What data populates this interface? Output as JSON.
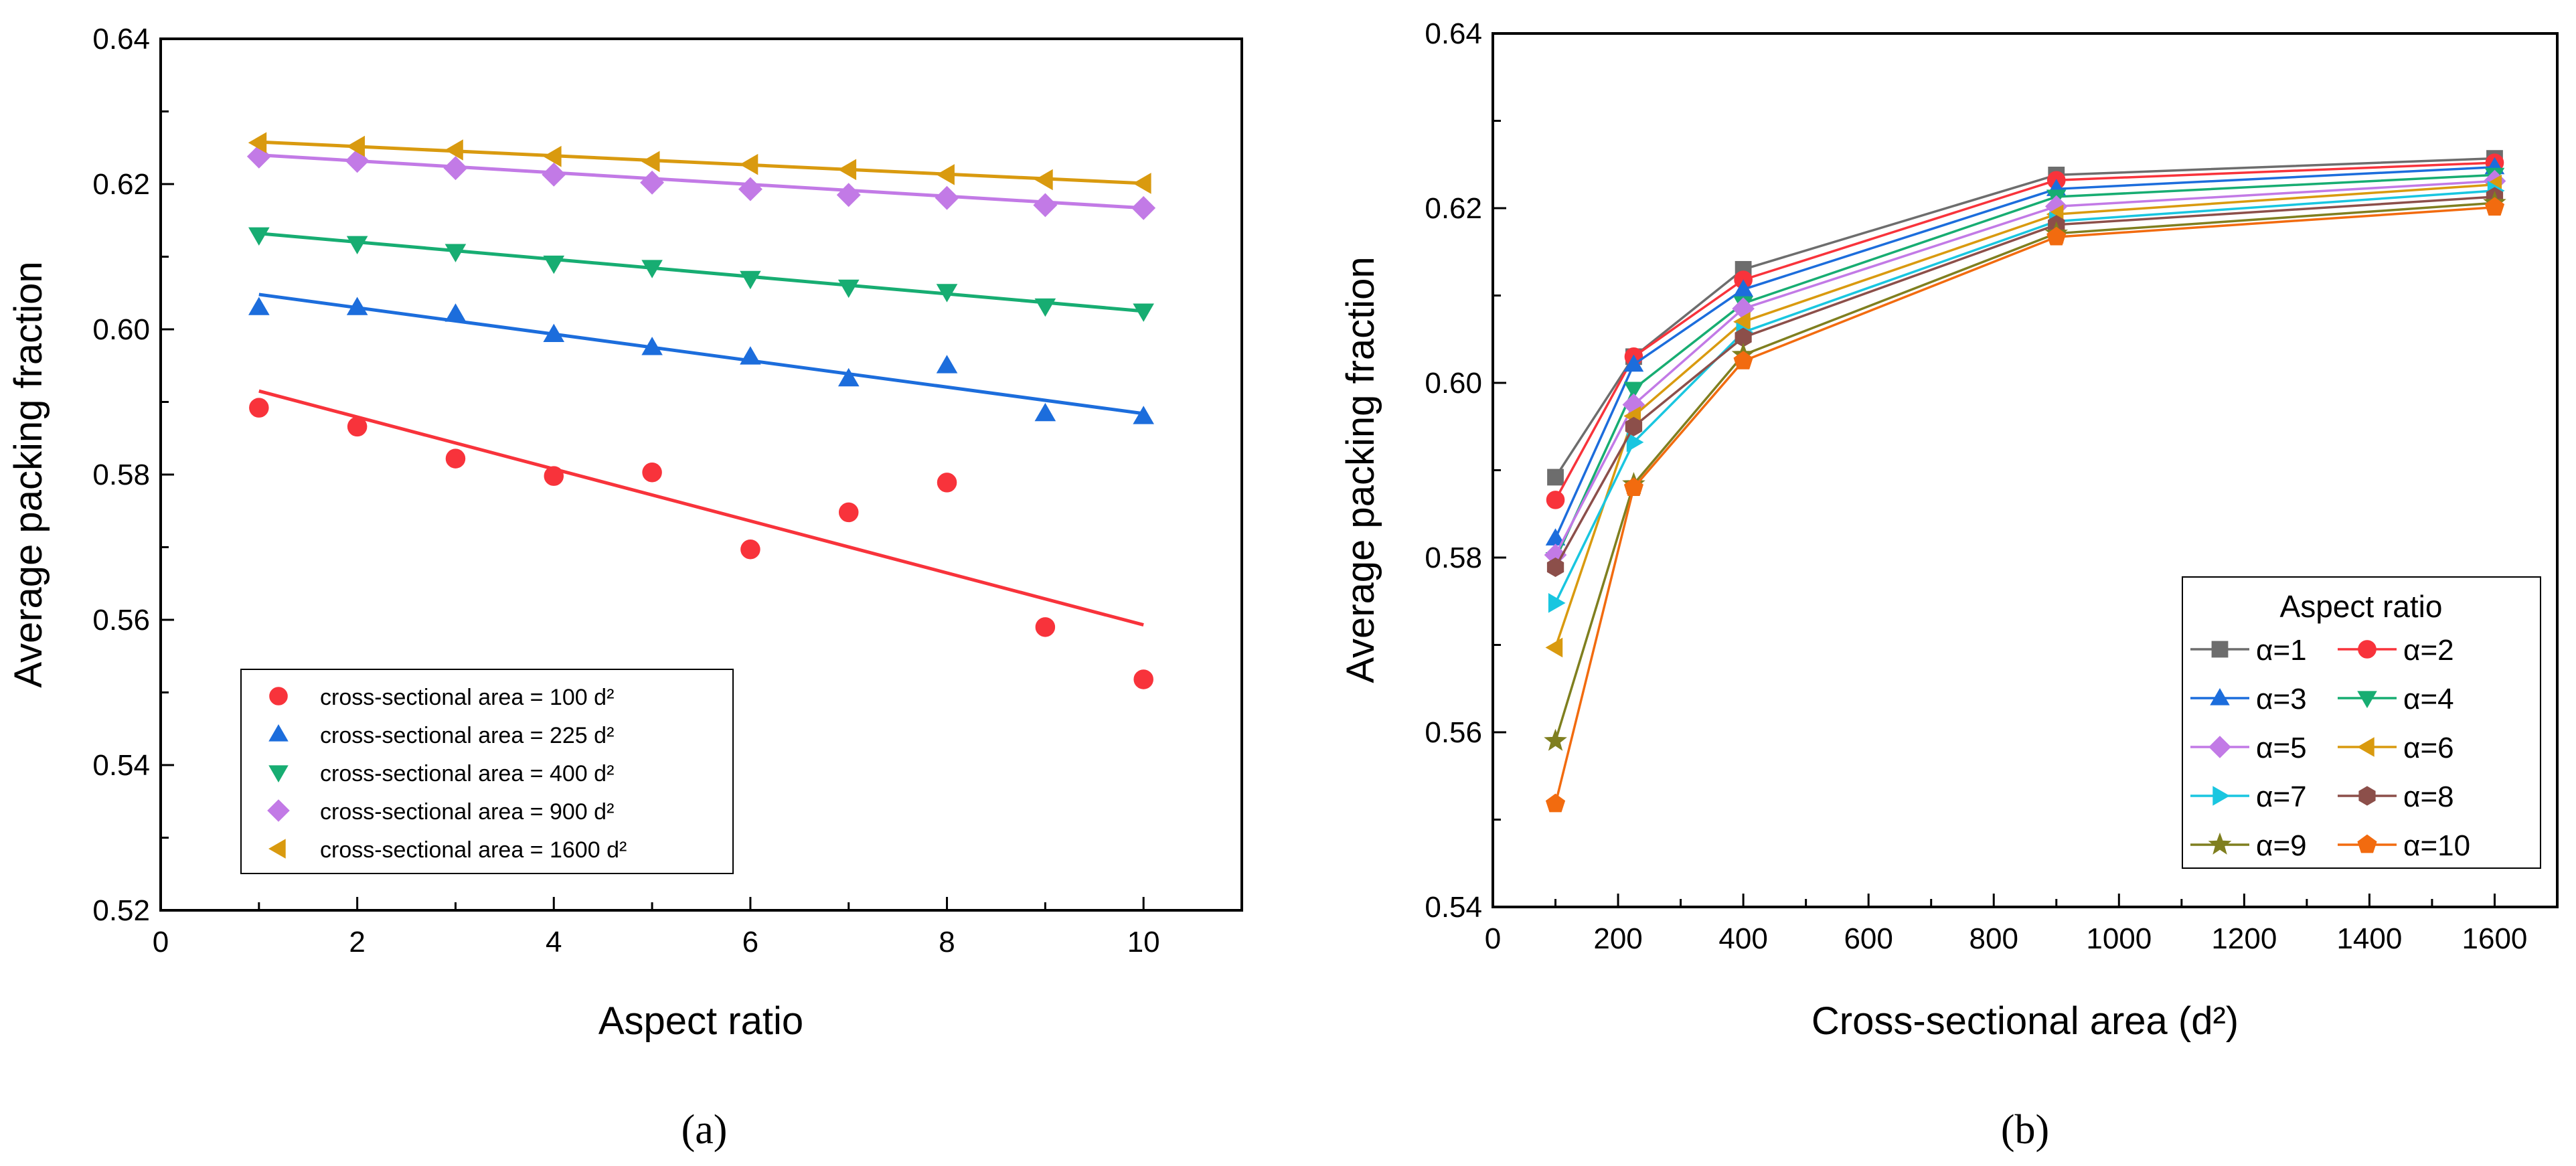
{
  "chart_data": [
    {
      "type": "scatter",
      "panel_label": "(a)",
      "xlabel": "Aspect ratio",
      "ylabel": "Average packing fraction",
      "xlim": [
        0,
        11
      ],
      "ylim": [
        0.52,
        0.64
      ],
      "xticks": [
        "0",
        "2",
        "4",
        "6",
        "8",
        "10"
      ],
      "xtick_values": [
        0,
        2,
        4,
        6,
        8,
        10
      ],
      "yticks": [
        "0.52",
        "0.54",
        "0.56",
        "0.58",
        "0.60",
        "0.62",
        "0.64"
      ],
      "ytick_values": [
        0.52,
        0.54,
        0.56,
        0.58,
        0.6,
        0.62,
        0.64
      ],
      "legend_position": "bottom-left",
      "x": [
        1,
        2,
        3,
        4,
        5,
        6,
        7,
        8,
        9,
        10
      ],
      "series": [
        {
          "name": "cross-sectional area = 100 d²",
          "marker": "circle",
          "color": "#f8333b",
          "values": [
            0.5892,
            0.5866,
            0.5822,
            0.5798,
            0.5803,
            0.5697,
            0.5748,
            0.5789,
            0.559,
            0.5518
          ],
          "fit": [
            0.5915,
            0.5593
          ]
        },
        {
          "name": "cross-sectional area = 225 d²",
          "marker": "triangle-up",
          "color": "#1c6ddc",
          "values": [
            0.603,
            0.603,
            0.6021,
            0.5993,
            0.5975,
            0.5962,
            0.5932,
            0.595,
            0.5884,
            0.588
          ],
          "fit": [
            0.6048,
            0.5884
          ]
        },
        {
          "name": "cross-sectional area = 400 d²",
          "marker": "triangle-down",
          "color": "#17ad72",
          "values": [
            0.613,
            0.6118,
            0.6107,
            0.6091,
            0.6085,
            0.607,
            0.6058,
            0.6052,
            0.6032,
            0.6025
          ],
          "fit": [
            0.6132,
            0.6025
          ]
        },
        {
          "name": "cross-sectional area = 900 d²",
          "marker": "diamond",
          "color": "#c27ae6",
          "values": [
            0.6238,
            0.6232,
            0.6222,
            0.6213,
            0.6202,
            0.6193,
            0.6185,
            0.6181,
            0.6171,
            0.6167
          ],
          "fit": [
            0.624,
            0.6167
          ]
        },
        {
          "name": "cross-sectional area = 1600 d²",
          "marker": "triangle-left",
          "color": "#d99a0f",
          "values": [
            0.6257,
            0.6252,
            0.6247,
            0.6238,
            0.6231,
            0.6227,
            0.622,
            0.6213,
            0.6206,
            0.6201
          ],
          "fit": [
            0.6258,
            0.6201
          ]
        }
      ]
    },
    {
      "type": "line",
      "panel_label": "(b)",
      "xlabel": "Cross-sectional area (d²)",
      "ylabel": "Average packing fraction",
      "xlim": [
        0,
        1700
      ],
      "ylim": [
        0.54,
        0.64
      ],
      "xticks": [
        "0",
        "200",
        "400",
        "600",
        "800",
        "1000",
        "1200",
        "1400",
        "1600"
      ],
      "xtick_values": [
        0,
        200,
        400,
        600,
        800,
        1000,
        1200,
        1400,
        1600
      ],
      "yticks": [
        "0.54",
        "0.56",
        "0.58",
        "0.60",
        "0.62",
        "0.64"
      ],
      "ytick_values": [
        0.54,
        0.56,
        0.58,
        0.6,
        0.62,
        0.64
      ],
      "legend_title": "Aspect ratio",
      "legend_position": "bottom-right",
      "x": [
        100,
        225,
        400,
        900,
        1600
      ],
      "series": [
        {
          "name": "α=1",
          "marker": "square",
          "color": "#6d6d6d",
          "values": [
            0.5892,
            0.603,
            0.613,
            0.6238,
            0.6257
          ]
        },
        {
          "name": "α=2",
          "marker": "circle",
          "color": "#f8333b",
          "values": [
            0.5866,
            0.603,
            0.6118,
            0.6232,
            0.6252
          ]
        },
        {
          "name": "α=3",
          "marker": "triangle-up",
          "color": "#1c6ddc",
          "values": [
            0.5822,
            0.6021,
            0.6107,
            0.6222,
            0.6247
          ]
        },
        {
          "name": "α=4",
          "marker": "triangle-down",
          "color": "#17ad72",
          "values": [
            0.5798,
            0.5993,
            0.6091,
            0.6213,
            0.6238
          ]
        },
        {
          "name": "α=5",
          "marker": "diamond",
          "color": "#c27ae6",
          "values": [
            0.5803,
            0.5975,
            0.6085,
            0.6202,
            0.6231
          ]
        },
        {
          "name": "α=6",
          "marker": "triangle-left",
          "color": "#d99a0f",
          "values": [
            0.5697,
            0.5962,
            0.607,
            0.6193,
            0.6227
          ]
        },
        {
          "name": "α=7",
          "marker": "triangle-right",
          "color": "#19c6e0",
          "values": [
            0.5748,
            0.5932,
            0.6058,
            0.6185,
            0.622
          ]
        },
        {
          "name": "α=8",
          "marker": "hexagon",
          "color": "#8c4f4a",
          "values": [
            0.5789,
            0.595,
            0.6052,
            0.6181,
            0.6213
          ]
        },
        {
          "name": "α=9",
          "marker": "star",
          "color": "#7f7f1f",
          "values": [
            0.559,
            0.5884,
            0.6032,
            0.6171,
            0.6206
          ]
        },
        {
          "name": "α=10",
          "marker": "pentagon",
          "color": "#f26b0f",
          "values": [
            0.5518,
            0.588,
            0.6025,
            0.6167,
            0.6201
          ]
        }
      ]
    }
  ]
}
